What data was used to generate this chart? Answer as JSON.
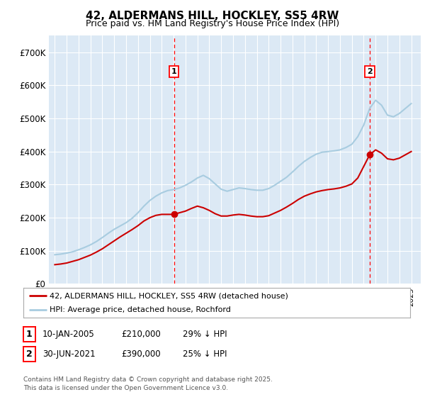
{
  "title": "42, ALDERMANS HILL, HOCKLEY, SS5 4RW",
  "subtitle": "Price paid vs. HM Land Registry's House Price Index (HPI)",
  "ylim": [
    0,
    750000
  ],
  "yticks": [
    0,
    100000,
    200000,
    300000,
    400000,
    500000,
    600000,
    700000
  ],
  "ytick_labels": [
    "£0",
    "£100K",
    "£200K",
    "£300K",
    "£400K",
    "£500K",
    "£600K",
    "£700K"
  ],
  "background_color": "#dce9f5",
  "fig_bg_color": "#ffffff",
  "grid_color": "#ffffff",
  "hpi_color": "#a8cce0",
  "price_color": "#cc0000",
  "legend_line1": "42, ALDERMANS HILL, HOCKLEY, SS5 4RW (detached house)",
  "legend_line2": "HPI: Average price, detached house, Rochford",
  "footnote": "Contains HM Land Registry data © Crown copyright and database right 2025.\nThis data is licensed under the Open Government Licence v3.0.",
  "xlim_start": 1994.5,
  "xlim_end": 2025.8,
  "marker1_x": 2005.03,
  "marker1_y": 210000,
  "marker2_x": 2021.5,
  "marker2_y": 390000,
  "years_hpi": [
    1995,
    1995.5,
    1996,
    1996.5,
    1997,
    1997.5,
    1998,
    1998.5,
    1999,
    1999.5,
    2000,
    2000.5,
    2001,
    2001.5,
    2002,
    2002.5,
    2003,
    2003.5,
    2004,
    2004.5,
    2005,
    2005.5,
    2006,
    2006.5,
    2007,
    2007.5,
    2008,
    2008.5,
    2009,
    2009.5,
    2010,
    2010.5,
    2011,
    2011.5,
    2012,
    2012.5,
    2013,
    2013.5,
    2014,
    2014.5,
    2015,
    2015.5,
    2016,
    2016.5,
    2017,
    2017.5,
    2018,
    2018.5,
    2019,
    2019.5,
    2020,
    2020.5,
    2021,
    2021.5,
    2022,
    2022.5,
    2023,
    2023.5,
    2024,
    2024.5,
    2025
  ],
  "hpi_values": [
    88000,
    90000,
    93000,
    97000,
    103000,
    110000,
    118000,
    128000,
    140000,
    153000,
    165000,
    175000,
    185000,
    198000,
    215000,
    235000,
    252000,
    265000,
    275000,
    282000,
    285000,
    290000,
    298000,
    308000,
    320000,
    328000,
    318000,
    302000,
    286000,
    280000,
    285000,
    290000,
    288000,
    285000,
    283000,
    283000,
    288000,
    298000,
    310000,
    322000,
    338000,
    355000,
    370000,
    382000,
    392000,
    398000,
    400000,
    402000,
    405000,
    412000,
    422000,
    445000,
    480000,
    530000,
    555000,
    540000,
    510000,
    505000,
    515000,
    530000,
    545000
  ],
  "years_price": [
    1995,
    1995.5,
    1996,
    1996.5,
    1997,
    1997.5,
    1998,
    1998.5,
    1999,
    1999.5,
    2000,
    2000.5,
    2001,
    2001.5,
    2002,
    2002.5,
    2003,
    2003.5,
    2004,
    2004.5,
    2005,
    2005.5,
    2006,
    2006.5,
    2007,
    2007.5,
    2008,
    2008.5,
    2009,
    2009.5,
    2010,
    2010.5,
    2011,
    2011.5,
    2012,
    2012.5,
    2013,
    2013.5,
    2014,
    2014.5,
    2015,
    2015.5,
    2016,
    2016.5,
    2017,
    2017.5,
    2018,
    2018.5,
    2019,
    2019.5,
    2020,
    2020.5,
    2021,
    2021.5,
    2022,
    2022.5,
    2023,
    2023.5,
    2024,
    2024.5,
    2025
  ],
  "price_values": [
    58000,
    60000,
    63000,
    68000,
    73000,
    80000,
    87000,
    96000,
    106000,
    118000,
    130000,
    142000,
    153000,
    164000,
    176000,
    190000,
    200000,
    207000,
    210000,
    210000,
    210000,
    215000,
    220000,
    228000,
    235000,
    230000,
    222000,
    212000,
    205000,
    205000,
    208000,
    210000,
    208000,
    205000,
    203000,
    203000,
    206000,
    214000,
    222000,
    232000,
    243000,
    255000,
    265000,
    272000,
    278000,
    282000,
    285000,
    287000,
    290000,
    295000,
    302000,
    320000,
    355000,
    390000,
    405000,
    395000,
    378000,
    375000,
    380000,
    390000,
    400000
  ]
}
